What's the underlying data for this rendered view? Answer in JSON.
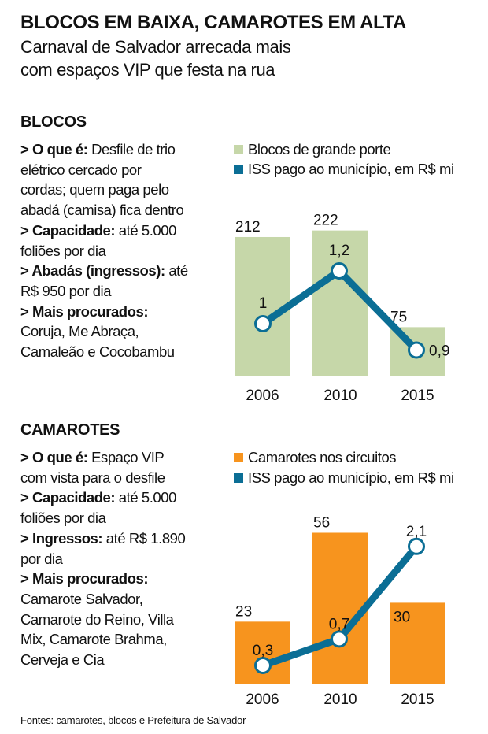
{
  "header": {
    "title": "BLOCOS EM BAIXA, CAMAROTES EM ALTA",
    "subtitle_lines": [
      "Carnaval de Salvador arrecada mais",
      "com espaços VIP que festa na rua"
    ]
  },
  "sections": [
    {
      "heading": "BLOCOS",
      "lines": [
        {
          "bold": "> O que é:",
          "text": " Desfile de trio"
        },
        {
          "bold": "",
          "text": "elétrico cercado por"
        },
        {
          "bold": "",
          "text": "cordas; quem paga pelo"
        },
        {
          "bold": "",
          "text": "abadá (camisa) fica dentro"
        },
        {
          "bold": "> Capacidade:",
          "text": " até 5.000"
        },
        {
          "bold": "",
          "text": "foliões por dia"
        },
        {
          "bold": "> Abadás (ingressos):",
          "text": " até"
        },
        {
          "bold": "",
          "text": "R$ 950 por dia"
        },
        {
          "bold": "> Mais procurados:",
          "text": ""
        },
        {
          "bold": "",
          "text": "Coruja, Me Abraça,"
        },
        {
          "bold": "",
          "text": "Camaleão e Cocobambu"
        }
      ]
    },
    {
      "heading": "CAMAROTES",
      "lines": [
        {
          "bold": "> O que é:",
          "text": " Espaço VIP"
        },
        {
          "bold": "",
          "text": "com vista para o desfile"
        },
        {
          "bold": "> Capacidade:",
          "text": " até 5.000"
        },
        {
          "bold": "",
          "text": "foliões por dia"
        },
        {
          "bold": "> Ingressos:",
          "text": " até R$ 1.890"
        },
        {
          "bold": "",
          "text": "por dia"
        },
        {
          "bold": "> Mais procurados:",
          "text": ""
        },
        {
          "bold": "",
          "text": "Camarote Salvador,"
        },
        {
          "bold": "",
          "text": "Camarote do Reino, Villa"
        },
        {
          "bold": "",
          "text": "Mix, Camarote Brahma,"
        },
        {
          "bold": "",
          "text": "Cerveja e Cia"
        }
      ]
    }
  ],
  "footer": "Fontes: camarotes, blocos e Prefeitura de Salvador",
  "chart_data": [
    {
      "type": "bar",
      "title": "Blocos",
      "categories": [
        "2006",
        "2010",
        "2015"
      ],
      "series": [
        {
          "name": "Blocos de grande porte",
          "type": "bar",
          "values": [
            212,
            222,
            75
          ],
          "labels": [
            "212",
            "222",
            "75"
          ],
          "color": "#c6d7a9"
        },
        {
          "name": "ISS pago ao município, em R$ mi",
          "type": "line",
          "values": [
            1,
            1.2,
            0.9
          ],
          "labels": [
            "1",
            "1,2",
            "0,9"
          ],
          "color": "#0b6e95"
        }
      ],
      "grid": false,
      "legend": "top"
    },
    {
      "type": "bar",
      "title": "Camarotes",
      "categories": [
        "2006",
        "2010",
        "2015"
      ],
      "series": [
        {
          "name": "Camarotes nos circuitos",
          "type": "bar",
          "values": [
            23,
            56,
            30
          ],
          "labels": [
            "23",
            "56",
            "30"
          ],
          "color": "#f7941e"
        },
        {
          "name": "ISS pago ao município, em R$ mi",
          "type": "line",
          "values": [
            0.3,
            0.7,
            2.1
          ],
          "labels": [
            "0,3",
            "0,7",
            "2,1"
          ],
          "color": "#0b6e95"
        }
      ],
      "grid": false,
      "legend": "top"
    }
  ]
}
